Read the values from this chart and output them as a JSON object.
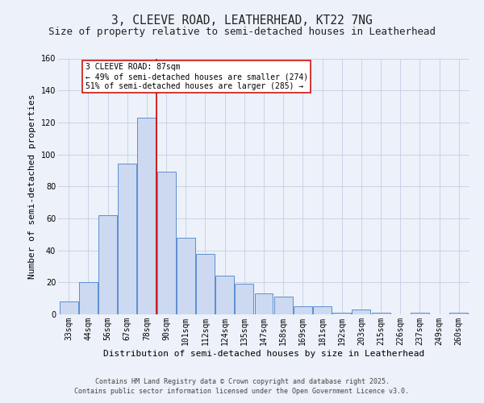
{
  "title_line1": "3, CLEEVE ROAD, LEATHERHEAD, KT22 7NG",
  "title_line2": "Size of property relative to semi-detached houses in Leatherhead",
  "xlabel": "Distribution of semi-detached houses by size in Leatherhead",
  "ylabel": "Number of semi-detached properties",
  "categories": [
    "33sqm",
    "44sqm",
    "56sqm",
    "67sqm",
    "78sqm",
    "90sqm",
    "101sqm",
    "112sqm",
    "124sqm",
    "135sqm",
    "147sqm",
    "158sqm",
    "169sqm",
    "181sqm",
    "192sqm",
    "203sqm",
    "215sqm",
    "226sqm",
    "237sqm",
    "249sqm",
    "260sqm"
  ],
  "values": [
    8,
    20,
    62,
    94,
    123,
    89,
    48,
    38,
    24,
    19,
    13,
    11,
    5,
    5,
    1,
    3,
    1,
    0,
    1,
    0,
    1
  ],
  "bar_color": "#ccd9f0",
  "bar_edge_color": "#5b8fd4",
  "grid_color": "#c8d4e8",
  "background_color": "#edf1f9",
  "red_line_index": 4.5,
  "red_line_color": "#cc0000",
  "annotation_text": "3 CLEEVE ROAD: 87sqm\n← 49% of semi-detached houses are smaller (274)\n51% of semi-detached houses are larger (285) →",
  "annotation_box_color": "#ffffff",
  "annotation_box_edge": "#cc0000",
  "ylim": [
    0,
    160
  ],
  "yticks": [
    0,
    20,
    40,
    60,
    80,
    100,
    120,
    140,
    160
  ],
  "footer_line1": "Contains HM Land Registry data © Crown copyright and database right 2025.",
  "footer_line2": "Contains public sector information licensed under the Open Government Licence v3.0.",
  "title_fontsize": 10.5,
  "subtitle_fontsize": 9,
  "axis_label_fontsize": 8,
  "tick_fontsize": 7,
  "annotation_fontsize": 7,
  "footer_fontsize": 6
}
